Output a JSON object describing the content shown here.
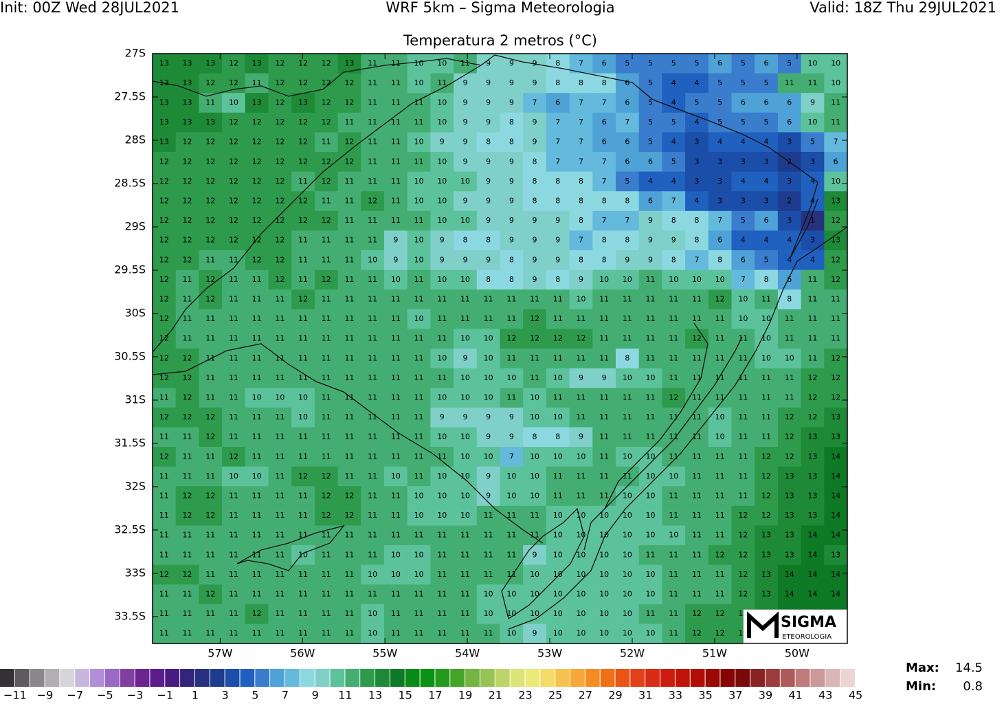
{
  "map": {
    "header_left": "Init: 00Z Wed 28JUL2021",
    "header_center": "WRF 5km – Sigma Meteorologia",
    "header_right": "Valid: 18Z Thu 29JUL2021",
    "title": "Temperatura 2 metros (°C)",
    "xlim": [
      -57.82,
      -49.39
    ],
    "ylim": [
      -33.81,
      -27
    ],
    "xticks": [
      {
        "value": -57,
        "label": "57W"
      },
      {
        "value": -56,
        "label": "56W"
      },
      {
        "value": -55,
        "label": "55W"
      },
      {
        "value": -54,
        "label": "54W"
      },
      {
        "value": -53,
        "label": "53W"
      },
      {
        "value": -52,
        "label": "52W"
      },
      {
        "value": -51,
        "label": "51W"
      },
      {
        "value": -50,
        "label": "50W"
      }
    ],
    "yticks": [
      {
        "value": -27,
        "label": "27S"
      },
      {
        "value": -27.5,
        "label": "27.5S"
      },
      {
        "value": -28,
        "label": "28S"
      },
      {
        "value": -28.5,
        "label": "28.5S"
      },
      {
        "value": -29,
        "label": "29S"
      },
      {
        "value": -29.5,
        "label": "29.5S"
      },
      {
        "value": -30,
        "label": "30S"
      },
      {
        "value": -30.5,
        "label": "30.5S"
      },
      {
        "value": -31,
        "label": "31S"
      },
      {
        "value": -31.5,
        "label": "31.5S"
      },
      {
        "value": -32,
        "label": "32S"
      },
      {
        "value": -32.5,
        "label": "32.5S"
      },
      {
        "value": -33,
        "label": "33S"
      },
      {
        "value": -33.5,
        "label": "33.5S"
      }
    ],
    "field": [
      [
        13,
        13,
        13,
        12,
        13,
        12,
        12,
        12,
        13,
        11,
        11,
        10,
        10,
        11,
        9,
        9,
        9,
        8,
        7,
        6,
        5,
        5,
        5,
        5,
        6,
        5,
        6,
        5,
        10,
        10
      ],
      [
        13,
        13,
        12,
        12,
        11,
        12,
        12,
        12,
        12,
        11,
        11,
        10,
        11,
        9,
        9,
        9,
        9,
        8,
        8,
        8,
        6,
        5,
        4,
        4,
        5,
        5,
        5,
        11,
        11,
        10
      ],
      [
        13,
        13,
        11,
        10,
        13,
        12,
        13,
        12,
        12,
        11,
        11,
        11,
        10,
        9,
        9,
        9,
        7,
        6,
        7,
        7,
        6,
        5,
        4,
        5,
        5,
        6,
        6,
        6,
        9,
        11
      ],
      [
        13,
        13,
        13,
        12,
        12,
        12,
        12,
        12,
        11,
        11,
        11,
        11,
        10,
        9,
        9,
        8,
        9,
        7,
        7,
        6,
        7,
        5,
        5,
        4,
        5,
        5,
        5,
        6,
        10,
        11
      ],
      [
        13,
        12,
        12,
        12,
        12,
        12,
        12,
        11,
        12,
        11,
        11,
        10,
        9,
        9,
        8,
        8,
        9,
        7,
        7,
        6,
        6,
        5,
        4,
        3,
        4,
        4,
        4,
        3,
        5,
        7
      ],
      [
        12,
        12,
        12,
        12,
        12,
        12,
        12,
        12,
        12,
        11,
        11,
        11,
        10,
        9,
        9,
        9,
        8,
        7,
        7,
        7,
        6,
        6,
        5,
        3,
        3,
        3,
        3,
        2,
        3,
        6
      ],
      [
        12,
        12,
        12,
        12,
        12,
        12,
        11,
        12,
        11,
        11,
        11,
        10,
        10,
        10,
        9,
        9,
        8,
        8,
        8,
        7,
        5,
        4,
        4,
        3,
        3,
        4,
        4,
        3,
        4,
        10
      ],
      [
        12,
        12,
        12,
        12,
        12,
        12,
        12,
        11,
        11,
        12,
        11,
        10,
        10,
        9,
        9,
        9,
        8,
        8,
        8,
        8,
        8,
        6,
        7,
        4,
        3,
        3,
        3,
        2,
        4,
        13
      ],
      [
        12,
        12,
        12,
        12,
        12,
        12,
        12,
        12,
        11,
        11,
        11,
        11,
        10,
        10,
        9,
        9,
        9,
        9,
        8,
        7,
        7,
        9,
        8,
        8,
        7,
        5,
        6,
        3,
        1,
        12
      ],
      [
        12,
        12,
        12,
        12,
        12,
        12,
        11,
        11,
        11,
        11,
        9,
        10,
        9,
        8,
        8,
        9,
        9,
        9,
        7,
        8,
        8,
        9,
        9,
        8,
        6,
        4,
        4,
        4,
        3,
        13
      ],
      [
        12,
        12,
        11,
        11,
        12,
        12,
        11,
        11,
        11,
        10,
        9,
        10,
        9,
        9,
        9,
        8,
        9,
        9,
        8,
        8,
        9,
        9,
        8,
        7,
        8,
        6,
        5,
        4,
        4,
        12
      ],
      [
        12,
        11,
        12,
        11,
        11,
        12,
        11,
        12,
        11,
        11,
        10,
        11,
        10,
        10,
        8,
        8,
        9,
        8,
        9,
        10,
        10,
        11,
        10,
        10,
        10,
        7,
        8,
        6,
        11,
        12
      ],
      [
        12,
        11,
        12,
        11,
        11,
        11,
        12,
        11,
        11,
        11,
        11,
        11,
        11,
        11,
        11,
        11,
        11,
        11,
        10,
        11,
        11,
        11,
        11,
        11,
        12,
        10,
        11,
        8,
        11,
        11
      ],
      [
        12,
        11,
        11,
        11,
        11,
        11,
        11,
        11,
        11,
        11,
        11,
        10,
        11,
        11,
        11,
        11,
        12,
        11,
        11,
        11,
        11,
        11,
        11,
        11,
        11,
        10,
        10,
        11,
        11,
        11
      ],
      [
        12,
        11,
        11,
        11,
        11,
        11,
        11,
        11,
        11,
        11,
        11,
        11,
        11,
        10,
        10,
        12,
        12,
        12,
        12,
        11,
        11,
        11,
        11,
        12,
        11,
        11,
        10,
        11,
        11,
        11
      ],
      [
        12,
        12,
        11,
        11,
        11,
        11,
        11,
        11,
        11,
        11,
        11,
        11,
        10,
        9,
        10,
        11,
        11,
        11,
        11,
        11,
        8,
        11,
        11,
        11,
        11,
        11,
        10,
        10,
        11,
        12
      ],
      [
        12,
        12,
        11,
        11,
        11,
        11,
        11,
        11,
        11,
        11,
        11,
        11,
        11,
        10,
        10,
        10,
        11,
        10,
        9,
        9,
        10,
        10,
        11,
        11,
        11,
        11,
        11,
        11,
        12,
        12
      ],
      [
        11,
        12,
        11,
        11,
        10,
        10,
        10,
        11,
        11,
        11,
        11,
        11,
        10,
        10,
        10,
        11,
        10,
        11,
        11,
        11,
        11,
        11,
        12,
        11,
        11,
        11,
        11,
        11,
        12,
        12
      ],
      [
        12,
        12,
        12,
        11,
        11,
        11,
        10,
        11,
        11,
        11,
        11,
        11,
        9,
        9,
        9,
        9,
        10,
        10,
        11,
        11,
        11,
        11,
        11,
        11,
        10,
        11,
        11,
        12,
        12,
        13
      ],
      [
        11,
        11,
        12,
        11,
        11,
        11,
        11,
        11,
        11,
        11,
        11,
        11,
        10,
        10,
        9,
        9,
        8,
        8,
        9,
        11,
        11,
        11,
        11,
        11,
        10,
        11,
        11,
        12,
        13,
        13
      ],
      [
        12,
        11,
        11,
        12,
        11,
        11,
        11,
        11,
        11,
        11,
        11,
        11,
        11,
        10,
        10,
        7,
        10,
        10,
        10,
        11,
        10,
        10,
        11,
        11,
        11,
        11,
        12,
        12,
        13,
        14
      ],
      [
        11,
        11,
        11,
        10,
        10,
        11,
        12,
        12,
        11,
        11,
        10,
        11,
        10,
        10,
        9,
        10,
        10,
        11,
        11,
        11,
        11,
        10,
        10,
        11,
        11,
        11,
        12,
        13,
        13,
        14
      ],
      [
        11,
        12,
        12,
        11,
        11,
        11,
        11,
        12,
        12,
        11,
        11,
        10,
        10,
        10,
        9,
        10,
        10,
        11,
        11,
        11,
        10,
        10,
        11,
        11,
        11,
        11,
        12,
        13,
        13,
        14
      ],
      [
        11,
        12,
        12,
        11,
        11,
        11,
        11,
        12,
        12,
        11,
        11,
        10,
        10,
        10,
        11,
        11,
        11,
        10,
        10,
        10,
        10,
        10,
        11,
        11,
        11,
        12,
        12,
        13,
        13,
        14
      ],
      [
        11,
        11,
        11,
        11,
        11,
        11,
        11,
        11,
        11,
        11,
        11,
        11,
        11,
        11,
        11,
        11,
        11,
        10,
        10,
        10,
        10,
        10,
        10,
        11,
        11,
        12,
        13,
        13,
        14,
        14
      ],
      [
        11,
        11,
        11,
        11,
        11,
        11,
        10,
        11,
        11,
        11,
        10,
        10,
        11,
        11,
        11,
        11,
        9,
        10,
        10,
        10,
        10,
        11,
        11,
        11,
        12,
        12,
        13,
        13,
        14,
        13
      ],
      [
        12,
        12,
        11,
        11,
        11,
        11,
        11,
        11,
        11,
        10,
        10,
        10,
        11,
        11,
        11,
        11,
        10,
        10,
        10,
        10,
        10,
        10,
        11,
        11,
        11,
        12,
        13,
        14,
        14,
        14
      ],
      [
        11,
        11,
        12,
        11,
        11,
        11,
        11,
        11,
        11,
        11,
        11,
        11,
        11,
        11,
        10,
        10,
        10,
        10,
        10,
        10,
        10,
        10,
        11,
        11,
        11,
        12,
        13,
        14,
        14,
        14
      ],
      [
        11,
        11,
        11,
        11,
        12,
        11,
        11,
        11,
        11,
        10,
        11,
        11,
        11,
        11,
        10,
        10,
        10,
        10,
        10,
        10,
        10,
        11,
        11,
        12,
        12,
        12,
        13,
        14,
        14,
        14
      ],
      [
        11,
        11,
        11,
        11,
        11,
        11,
        11,
        11,
        11,
        10,
        11,
        11,
        11,
        11,
        11,
        10,
        9,
        10,
        10,
        10,
        10,
        10,
        11,
        12,
        12,
        12,
        13,
        14,
        14,
        14
      ]
    ],
    "colorbar": {
      "clim": [
        -12,
        45
      ],
      "colors": [
        "#333135",
        "#5d5a60",
        "#8a878c",
        "#b2afb4",
        "#d8d5da",
        "#c9b6de",
        "#b18ed6",
        "#9a68c6",
        "#81409f",
        "#6b2490",
        "#5b1c8c",
        "#481a82",
        "#33247c",
        "#263180",
        "#1d3c8e",
        "#1b4ea8",
        "#2060bf",
        "#3a7dcd",
        "#4ea2d6",
        "#64badd",
        "#8cd8e0",
        "#7fd0c8",
        "#5cc29c",
        "#44ae72",
        "#2e9a4c",
        "#1e8a38",
        "#0f7a26",
        "#088a18",
        "#0a9212",
        "#249a1c",
        "#44a428",
        "#74b440",
        "#98c454",
        "#bcd468",
        "#dce478",
        "#eaea78",
        "#f4dc6a",
        "#f6c24e",
        "#f6a838",
        "#f48c24",
        "#f07018",
        "#ea5414",
        "#e2401a",
        "#d82c14",
        "#cc1c0e",
        "#c01408",
        "#b00e06",
        "#9a0a02",
        "#860402",
        "#7a0a0a",
        "#8a2222",
        "#9c3c3c",
        "#ae5a5a",
        "#c07c7c",
        "#cc9898",
        "#dab6b6",
        "#ead4d4"
      ],
      "ticks": [
        {
          "value": -11,
          "label": "−11"
        },
        {
          "value": -9,
          "label": "−9"
        },
        {
          "value": -7,
          "label": "−7"
        },
        {
          "value": -5,
          "label": "−5"
        },
        {
          "value": -3,
          "label": "−3"
        },
        {
          "value": -1,
          "label": "−1"
        },
        1,
        3,
        5,
        7,
        9,
        11,
        13,
        15,
        17,
        19,
        21,
        23,
        25,
        27,
        29,
        31,
        33,
        35,
        37,
        39,
        41,
        43,
        45
      ]
    },
    "max_label": "Max:",
    "max": 14.5,
    "min_label": "Min:",
    "min": 0.8,
    "logo": {
      "name": "SIGMA",
      "sub": "ETEOROLOGIA"
    }
  }
}
